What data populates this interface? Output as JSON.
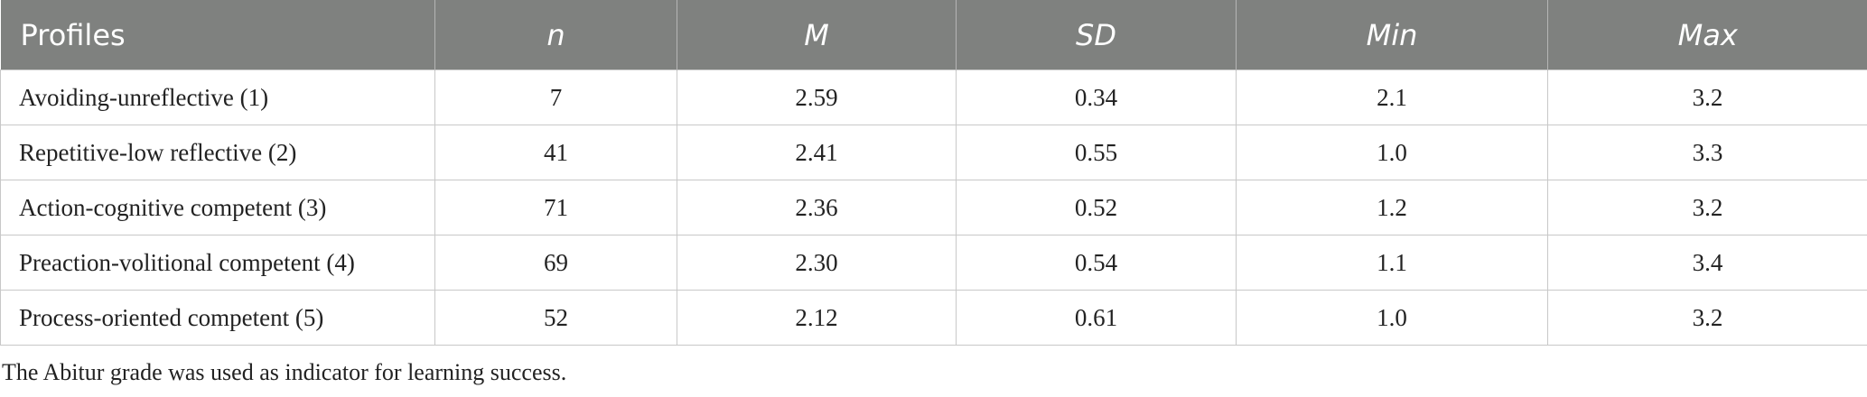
{
  "table": {
    "header": [
      "Profiles",
      "n",
      "M",
      "SD",
      "Min",
      "Max"
    ],
    "rows": [
      [
        "Avoiding-unreflective (1)",
        "7",
        "2.59",
        "0.34",
        "2.1",
        "3.2"
      ],
      [
        "Repetitive-low reflective (2)",
        "41",
        "2.41",
        "0.55",
        "1.0",
        "3.3"
      ],
      [
        "Action-cognitive competent (3)",
        "71",
        "2.36",
        "0.52",
        "1.2",
        "3.2"
      ],
      [
        "Preaction-volitional competent (4)",
        "69",
        "2.30",
        "0.54",
        "1.1",
        "3.4"
      ],
      [
        "Process-oriented competent (5)",
        "52",
        "2.12",
        "0.61",
        "1.0",
        "3.2"
      ]
    ]
  },
  "footnote": "The Abitur grade was used as indicator for learning success."
}
